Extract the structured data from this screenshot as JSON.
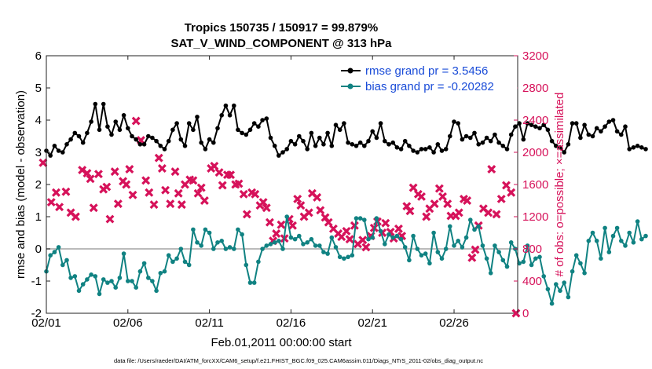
{
  "chart_data": {
    "type": "line",
    "title_line1": "Tropics 150735 / 150917 = 99.879%",
    "title_line2": "SAT_V_WIND_COMPONENT @ 313 hPa",
    "xlabel": "Feb.01,2011 00:00:00 start",
    "ylabel_left": "rmse and bias (model - observation)",
    "ylabel_right": "# of obs: o=possible; ×=assimilated",
    "footnote": "data file: /Users/raeder/DAI/ATM_forcXX/CAM6_setup/f.e21.FHIST_BGC.f09_025.CAM6assim.011/Diags_NTrS_2011-02/obs_diag_output.nc",
    "xlim": [
      0,
      28.9
    ],
    "ylim_left": [
      -2,
      6
    ],
    "ylim_right": [
      0,
      3200
    ],
    "x_ticks": [
      {
        "pos": 0,
        "label": "02/01"
      },
      {
        "pos": 5,
        "label": "02/06"
      },
      {
        "pos": 10,
        "label": "02/11"
      },
      {
        "pos": 15,
        "label": "02/16"
      },
      {
        "pos": 20,
        "label": "02/21"
      },
      {
        "pos": 25,
        "label": "02/26"
      }
    ],
    "y_ticks_left": [
      "-2",
      "-1",
      "0",
      "1",
      "2",
      "3",
      "4",
      "5",
      "6"
    ],
    "y_ticks_right": [
      "0",
      "400",
      "800",
      "1200",
      "1600",
      "2000",
      "2400",
      "2800",
      "3200"
    ],
    "legend_position": "top-right",
    "colors": {
      "rmse": "#000000",
      "bias": "#108282",
      "obs": "#d6125a",
      "legend_text": "#1a4cd8",
      "zero_line": "#bbbbbb"
    },
    "series": [
      {
        "name": "rmse grand pr = 3.5456",
        "x_start": 0,
        "x_step": 0.25,
        "values": [
          3.05,
          2.9,
          3.2,
          3.05,
          3.0,
          3.25,
          3.4,
          3.6,
          3.5,
          3.3,
          3.6,
          3.95,
          4.5,
          3.7,
          4.5,
          3.8,
          3.55,
          3.95,
          3.7,
          4.15,
          3.75,
          3.5,
          3.4,
          3.25,
          3.25,
          3.5,
          3.45,
          3.35,
          3.2,
          3.1,
          3.35,
          3.7,
          3.9,
          3.4,
          3.2,
          3.9,
          3.7,
          4.1,
          3.3,
          3.1,
          3.4,
          3.3,
          3.75,
          4.15,
          4.45,
          4.15,
          4.45,
          3.7,
          3.6,
          3.55,
          3.7,
          3.9,
          3.8,
          4.0,
          4.05,
          3.45,
          3.2,
          2.9,
          3.0,
          3.1,
          3.35,
          3.25,
          3.5,
          3.35,
          3.1,
          3.6,
          3.2,
          3.45,
          3.25,
          3.6,
          3.2,
          3.85,
          3.7,
          3.9,
          3.3,
          3.25,
          3.2,
          3.3,
          3.2,
          3.35,
          3.65,
          3.45,
          3.9,
          3.35,
          3.25,
          3.3,
          3.15,
          3.1,
          3.35,
          3.2,
          3.05,
          3.0,
          3.1,
          3.1,
          3.15,
          3.0,
          3.25,
          3.05,
          3.1,
          3.5,
          3.95,
          3.9,
          3.4,
          3.5,
          3.45,
          3.6,
          3.25,
          3.3,
          3.45,
          3.35,
          3.55,
          3.3,
          3.2,
          3.1,
          3.55,
          3.8,
          3.9,
          3.4,
          3.9,
          3.85,
          3.8,
          3.75,
          3.85,
          3.7,
          3.35,
          3.2,
          3.15,
          3.0,
          3.25,
          3.9,
          3.9,
          3.45,
          3.85,
          3.55,
          3.5,
          3.75,
          3.65,
          3.8,
          3.95,
          4.0,
          3.65,
          3.55,
          3.8,
          3.1,
          3.15,
          3.2,
          3.15,
          3.1
        ]
      },
      {
        "name": "bias grand pr = -0.20282",
        "x_start": 0,
        "x_step": 0.25,
        "values": [
          -0.7,
          -0.2,
          -0.1,
          0.05,
          -0.5,
          -0.35,
          -0.9,
          -0.85,
          -1.3,
          -1.1,
          -0.95,
          -0.8,
          -0.85,
          -1.4,
          -0.95,
          -1.05,
          -1.0,
          -1.2,
          -0.9,
          -0.15,
          -1.0,
          -1.0,
          -1.2,
          -0.7,
          -0.45,
          -0.9,
          -1.0,
          -1.3,
          -0.75,
          -0.7,
          -0.2,
          -0.4,
          -0.3,
          0.0,
          -0.4,
          -0.5,
          0.6,
          0.2,
          0.1,
          0.6,
          0.5,
          0.0,
          0.2,
          0.25,
          0.0,
          0.05,
          0.0,
          0.6,
          0.45,
          -0.5,
          -1.05,
          -1.05,
          -0.4,
          0.0,
          0.1,
          0.15,
          0.2,
          0.25,
          0.0,
          1.0,
          0.35,
          0.3,
          0.4,
          0.15,
          0.2,
          0.3,
          0.1,
          0.1,
          -0.1,
          -0.15,
          0.35,
          0.05,
          -0.25,
          -0.3,
          -0.25,
          -0.2,
          0.95,
          0.95,
          0.9,
          0.3,
          0.35,
          0.95,
          0.55,
          0.15,
          0.45,
          0.35,
          0.4,
          0.3,
          0.05,
          -0.35,
          0.4,
          0.0,
          -0.2,
          -0.15,
          -0.45,
          0.5,
          -0.1,
          -0.3,
          0.0,
          0.7,
          0.1,
          0.25,
          0.05,
          0.35,
          0.9,
          0.6,
          0.7,
          0.1,
          -0.3,
          -0.75,
          0.1,
          -0.1,
          -0.35,
          -0.55,
          0.2,
          0.0,
          -0.45,
          -0.4,
          0.1,
          -0.5,
          -0.3,
          -0.25,
          -0.85,
          -1.25,
          -1.7,
          -1.1,
          -1.3,
          -1.05,
          -1.5,
          -0.7,
          -0.2,
          -0.45,
          -0.75,
          0.25,
          0.5,
          0.25,
          -0.3,
          0.65,
          -0.1,
          0.4,
          0.65,
          0.25,
          0.1,
          0.5,
          0.2,
          0.85,
          0.3,
          0.4
        ]
      },
      {
        "name": "assimilated obs count",
        "marker": "x",
        "axis": "right",
        "points": [
          [
            -0.2,
            1870
          ],
          [
            0.3,
            1380
          ],
          [
            0.6,
            1500
          ],
          [
            0.8,
            1320
          ],
          [
            1.2,
            1510
          ],
          [
            1.5,
            1250
          ],
          [
            1.8,
            1200
          ],
          [
            2.2,
            1780
          ],
          [
            2.5,
            1740
          ],
          [
            2.7,
            1670
          ],
          [
            2.9,
            1310
          ],
          [
            3.2,
            1730
          ],
          [
            3.5,
            1540
          ],
          [
            3.7,
            1570
          ],
          [
            3.9,
            1170
          ],
          [
            4.2,
            1760
          ],
          [
            4.4,
            1360
          ],
          [
            4.7,
            1640
          ],
          [
            4.9,
            1600
          ],
          [
            5.1,
            1790
          ],
          [
            5.3,
            1470
          ],
          [
            5.5,
            2390
          ],
          [
            5.8,
            2150
          ],
          [
            6.1,
            1650
          ],
          [
            6.3,
            1500
          ],
          [
            6.6,
            1350
          ],
          [
            6.9,
            1930
          ],
          [
            7.1,
            1800
          ],
          [
            7.3,
            1530
          ],
          [
            7.6,
            1360
          ],
          [
            7.9,
            1760
          ],
          [
            8.1,
            1490
          ],
          [
            8.3,
            1350
          ],
          [
            8.5,
            1600
          ],
          [
            8.8,
            1660
          ],
          [
            9.0,
            1650
          ],
          [
            9.3,
            1490
          ],
          [
            9.5,
            1560
          ],
          [
            9.7,
            1400
          ],
          [
            10.1,
            1800
          ],
          [
            10.3,
            1830
          ],
          [
            10.6,
            1750
          ],
          [
            10.8,
            1590
          ],
          [
            11.1,
            1720
          ],
          [
            11.3,
            1720
          ],
          [
            11.6,
            1600
          ],
          [
            11.8,
            1610
          ],
          [
            12.1,
            1480
          ],
          [
            12.3,
            1230
          ],
          [
            12.6,
            1500
          ],
          [
            12.8,
            1480
          ],
          [
            13.1,
            1340
          ],
          [
            13.3,
            1380
          ],
          [
            13.5,
            1310
          ],
          [
            13.7,
            1130
          ],
          [
            13.9,
            900
          ],
          [
            14.1,
            990
          ],
          [
            14.4,
            1100
          ],
          [
            14.6,
            930
          ],
          [
            14.9,
            1170
          ],
          [
            15.1,
            1090
          ],
          [
            15.4,
            1420
          ],
          [
            15.6,
            1340
          ],
          [
            15.8,
            1200
          ],
          [
            16.1,
            1250
          ],
          [
            16.3,
            1490
          ],
          [
            16.6,
            1440
          ],
          [
            16.8,
            1280
          ],
          [
            17.1,
            1190
          ],
          [
            17.3,
            1130
          ],
          [
            17.6,
            1050
          ],
          [
            17.9,
            990
          ],
          [
            18.1,
            950
          ],
          [
            18.4,
            1020
          ],
          [
            18.6,
            920
          ],
          [
            18.9,
            1090
          ],
          [
            19.1,
            860
          ],
          [
            19.4,
            910
          ],
          [
            19.6,
            820
          ],
          [
            19.9,
            960
          ],
          [
            20.1,
            1060
          ],
          [
            20.3,
            1140
          ],
          [
            20.6,
            1000
          ],
          [
            20.8,
            1120
          ],
          [
            21.1,
            1010
          ],
          [
            21.3,
            930
          ],
          [
            21.6,
            1050
          ],
          [
            21.8,
            960
          ],
          [
            22.1,
            1330
          ],
          [
            22.3,
            1270
          ],
          [
            22.5,
            1560
          ],
          [
            22.8,
            1480
          ],
          [
            23.0,
            1450
          ],
          [
            23.3,
            1200
          ],
          [
            23.5,
            1300
          ],
          [
            23.8,
            1360
          ],
          [
            24.1,
            1550
          ],
          [
            24.3,
            1450
          ],
          [
            24.6,
            1360
          ],
          [
            24.8,
            1210
          ],
          [
            25.1,
            1210
          ],
          [
            25.3,
            1250
          ],
          [
            25.6,
            1420
          ],
          [
            25.8,
            1400
          ],
          [
            26.1,
            690
          ],
          [
            26.3,
            790
          ],
          [
            26.5,
            1090
          ],
          [
            26.8,
            1300
          ],
          [
            27.1,
            1250
          ],
          [
            27.3,
            1790
          ],
          [
            27.6,
            1230
          ],
          [
            27.9,
            1420
          ],
          [
            28.2,
            1590
          ],
          [
            28.5,
            1500
          ],
          [
            28.8,
            0
          ]
        ]
      }
    ]
  }
}
